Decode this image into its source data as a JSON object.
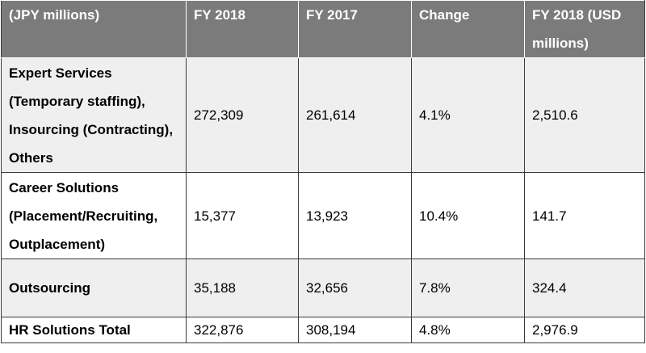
{
  "table": {
    "headers": [
      "(JPY millions)",
      "FY 2018",
      "FY 2017",
      "Change",
      "FY 2018 (USD millions)"
    ],
    "rows": [
      {
        "label": "Expert Services (Temporary staffing), Insourcing (Contracting), Others",
        "fy2018": "272,309",
        "fy2017": "261,614",
        "change": "4.1%",
        "usd": "2,510.6"
      },
      {
        "label": "Career Solutions (Placement/Recruiting, Outplacement)",
        "fy2018": "15,377",
        "fy2017": "13,923",
        "change": "10.4%",
        "usd": "141.7"
      },
      {
        "label": "Outsourcing",
        "fy2018": "35,188",
        "fy2017": "32,656",
        "change": "7.8%",
        "usd": "324.4"
      },
      {
        "label": "HR Solutions Total",
        "fy2018": "322,876",
        "fy2017": "308,194",
        "change": "4.8%",
        "usd": "2,976.9"
      }
    ]
  },
  "colors": {
    "header_bg": "#7b7b7b",
    "shaded_row_bg": "#efefef",
    "border": "#3a3a3a"
  }
}
